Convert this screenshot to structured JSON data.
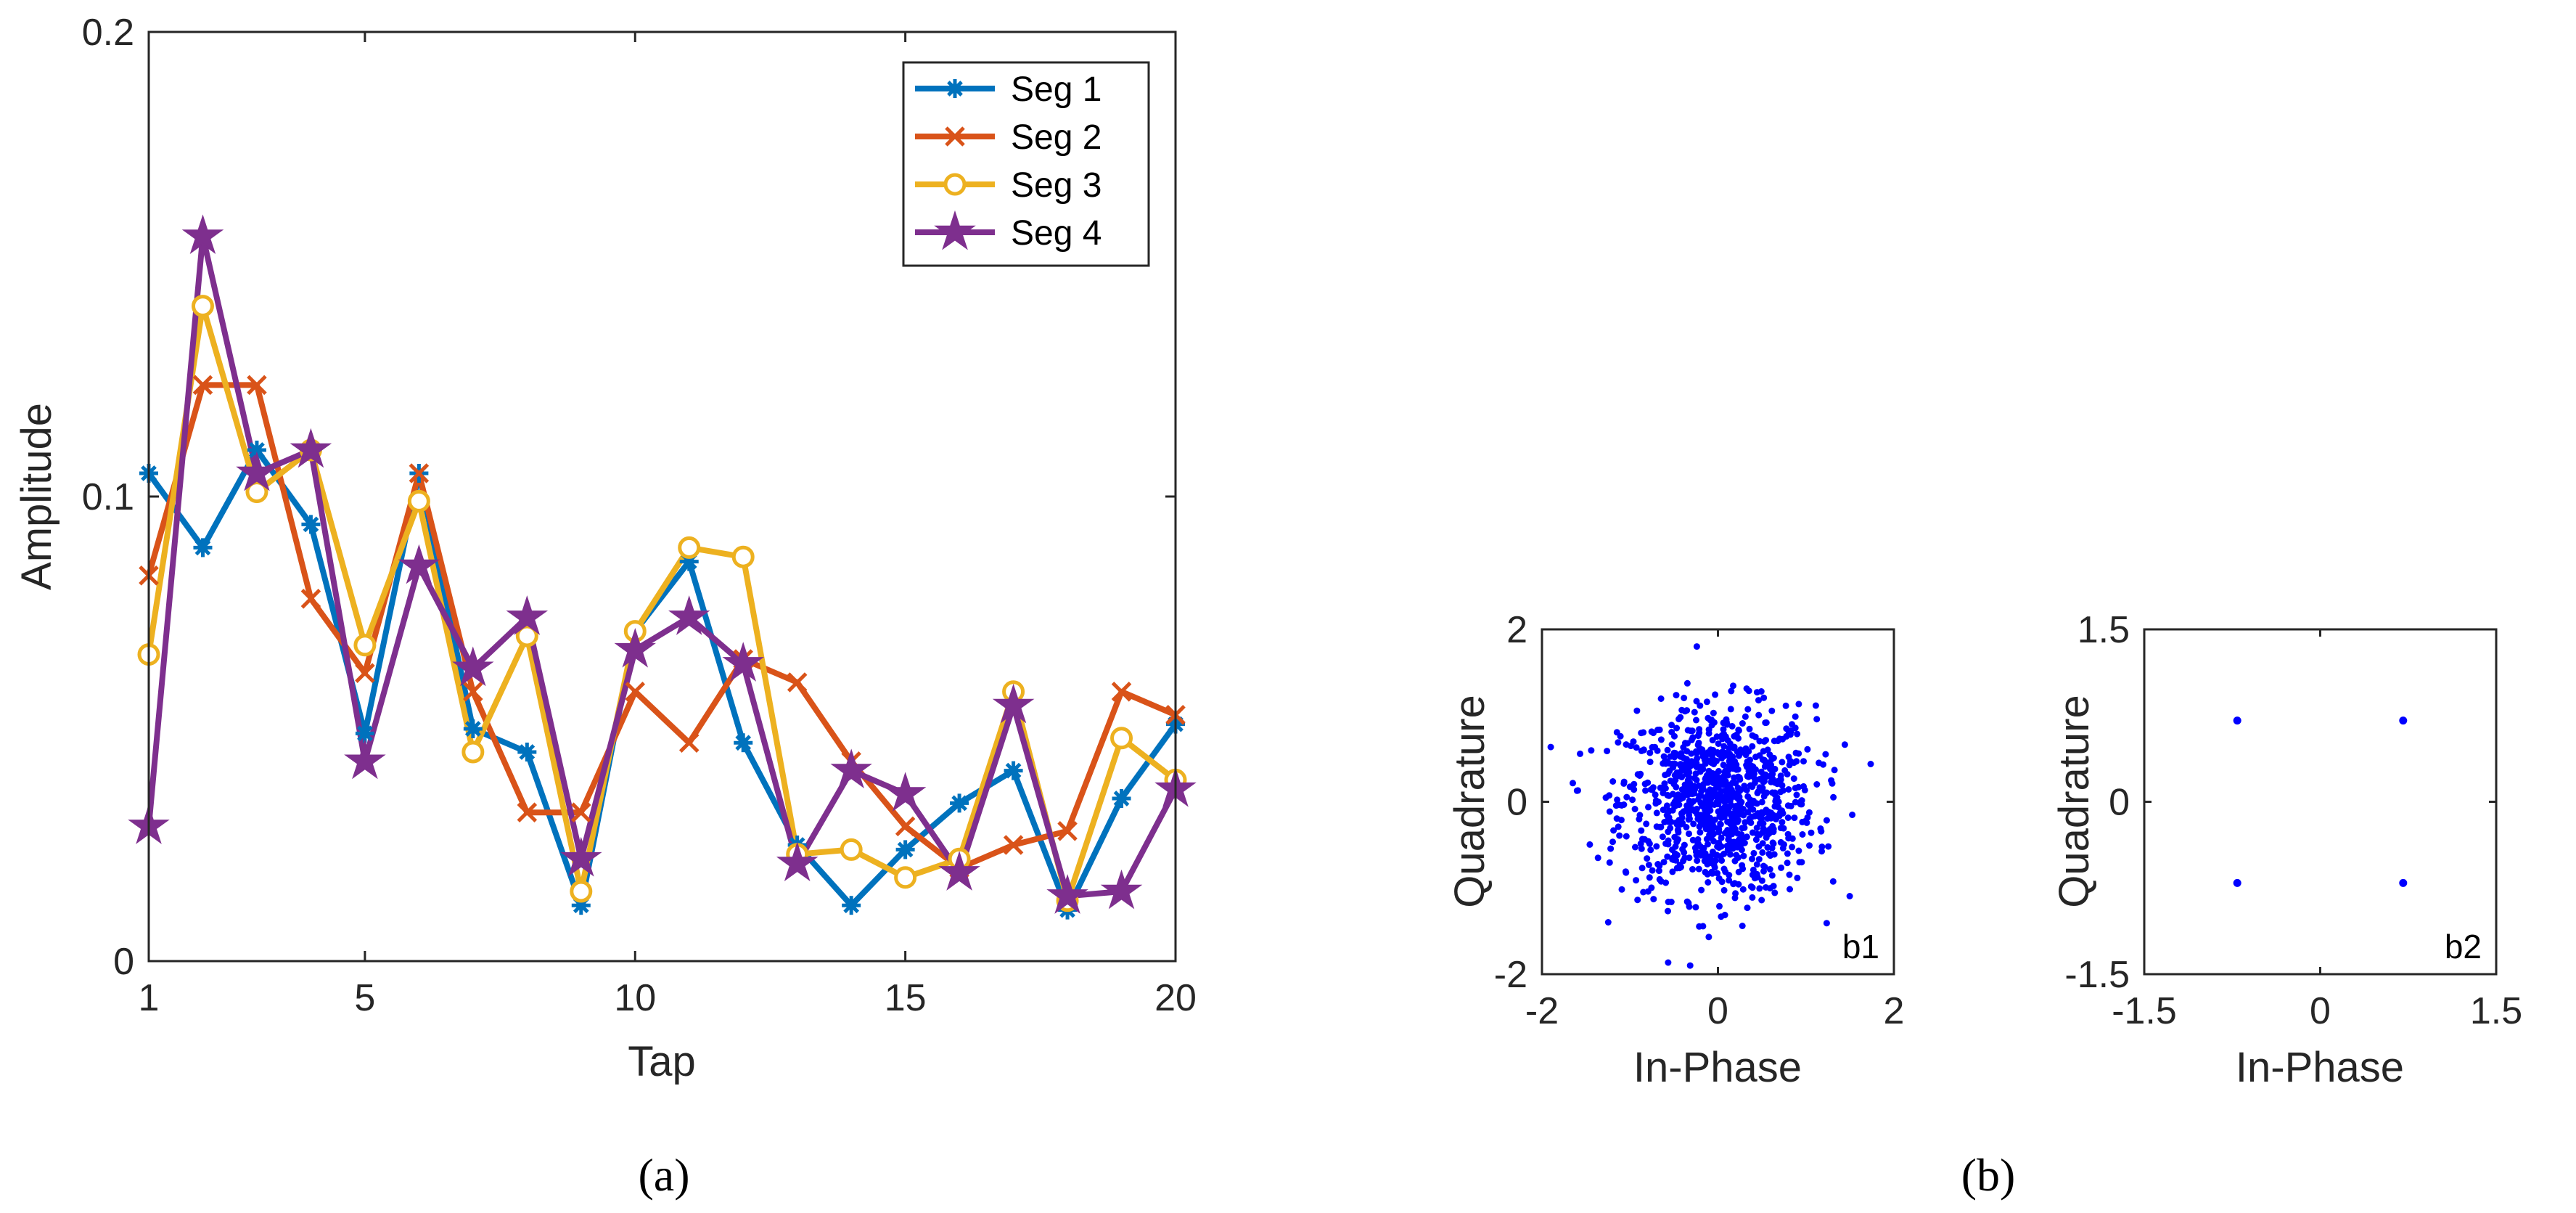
{
  "chart_data": [
    {
      "type": "line",
      "panel": "(a)",
      "xlabel": "Tap",
      "ylabel": "Amplitude",
      "xlim": [
        1,
        20
      ],
      "ylim": [
        0,
        0.2
      ],
      "xticks": [
        1,
        5,
        10,
        15,
        20
      ],
      "yticks": [
        0,
        0.1,
        0.2
      ],
      "xtick_labels": [
        "1",
        "5",
        "10",
        "15",
        "20"
      ],
      "ytick_labels": [
        "0",
        "0.1",
        "0.2"
      ],
      "legend_position": "top-right",
      "x": [
        1,
        2,
        3,
        4,
        5,
        6,
        7,
        8,
        9,
        10,
        11,
        12,
        13,
        14,
        15,
        16,
        17,
        18,
        19,
        20
      ],
      "series": [
        {
          "name": "Seg 1",
          "color": "#0072BD",
          "marker": "asterisk",
          "values": [
            0.105,
            0.089,
            0.11,
            0.094,
            0.049,
            0.105,
            0.05,
            0.045,
            0.012,
            0.071,
            0.086,
            0.047,
            0.025,
            0.012,
            0.024,
            0.034,
            0.041,
            0.011,
            0.035,
            0.051
          ]
        },
        {
          "name": "Seg 2",
          "color": "#D95319",
          "marker": "x",
          "values": [
            0.083,
            0.124,
            0.124,
            0.078,
            0.062,
            0.105,
            0.058,
            0.032,
            0.032,
            0.058,
            0.047,
            0.065,
            0.06,
            0.043,
            0.029,
            0.02,
            0.025,
            0.028,
            0.058,
            0.053
          ]
        },
        {
          "name": "Seg 3",
          "color": "#EDB120",
          "marker": "circle",
          "values": [
            0.066,
            0.141,
            0.101,
            0.11,
            0.068,
            0.099,
            0.045,
            0.07,
            0.015,
            0.071,
            0.089,
            0.087,
            0.023,
            0.024,
            0.018,
            0.022,
            0.058,
            0.013,
            0.048,
            0.039
          ]
        },
        {
          "name": "Seg 4",
          "color": "#7E2F8E",
          "marker": "pentagram",
          "values": [
            0.029,
            0.156,
            0.105,
            0.11,
            0.043,
            0.085,
            0.063,
            0.074,
            0.022,
            0.067,
            0.074,
            0.064,
            0.021,
            0.041,
            0.036,
            0.019,
            0.055,
            0.014,
            0.015,
            0.037
          ]
        }
      ]
    },
    {
      "type": "scatter",
      "panel": "b1",
      "xlabel": "In-Phase",
      "ylabel": "Quadrature",
      "xlim": [
        -2,
        2
      ],
      "ylim": [
        -2,
        2
      ],
      "xtick_labels": [
        "-2",
        "0",
        "2"
      ],
      "ytick_labels": [
        "-2",
        "0",
        "2"
      ],
      "xticks": [
        -2,
        0,
        2
      ],
      "yticks": [
        -2,
        0,
        2
      ],
      "color": "#0000FF",
      "description_points": "noisy cloud of ~1000 samples centered at origin",
      "n_points": 1000,
      "spread_std": 0.55
    },
    {
      "type": "scatter",
      "panel": "b2",
      "xlabel": "In-Phase",
      "ylabel": "Quadrature",
      "xlim": [
        -1.5,
        1.5
      ],
      "ylim": [
        -1.5,
        1.5
      ],
      "xtick_labels": [
        "-1.5",
        "0",
        "1.5"
      ],
      "ytick_labels": [
        "-1.5",
        "0",
        "1.5"
      ],
      "xticks": [
        -1.5,
        0,
        1.5
      ],
      "yticks": [
        -1.5,
        0,
        1.5
      ],
      "color": "#0000FF",
      "points": [
        [
          -0.707,
          0.707
        ],
        [
          0.707,
          0.707
        ],
        [
          -0.707,
          -0.707
        ],
        [
          0.707,
          -0.707
        ]
      ]
    }
  ],
  "captions": {
    "a": "(a)",
    "b": "(b)"
  }
}
